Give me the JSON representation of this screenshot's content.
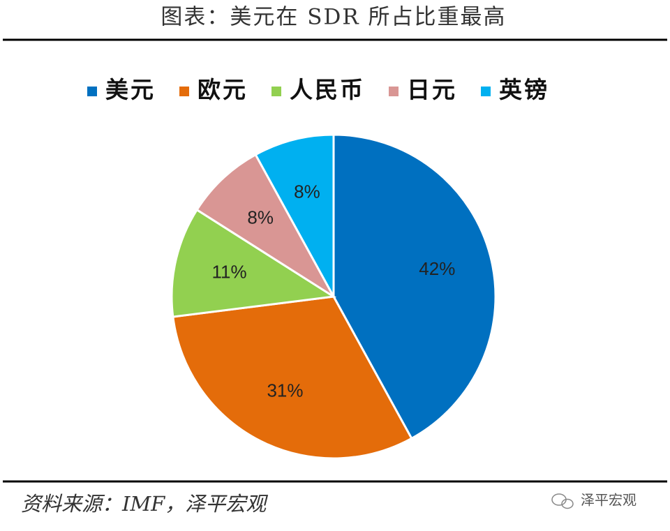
{
  "chart_data": {
    "type": "pie",
    "title": "图表：美元在 SDR 所占比重最高",
    "categories": [
      "美元",
      "欧元",
      "人民币",
      "日元",
      "英镑"
    ],
    "values": [
      42,
      31,
      11,
      8,
      8
    ],
    "value_labels": [
      "42%",
      "31%",
      "11%",
      "8%",
      "8%"
    ],
    "colors": [
      "#0070c0",
      "#e46c0a",
      "#92d050",
      "#d99694",
      "#00b0f0"
    ],
    "legend": "top",
    "source": "资料来源：IMF，泽平宏观",
    "watermark": "泽平宏观"
  }
}
